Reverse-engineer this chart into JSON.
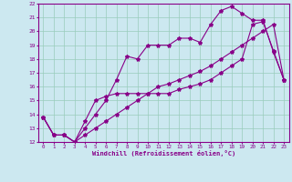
{
  "xlabel": "Windchill (Refroidissement éolien,°C)",
  "bg_color": "#cce8f0",
  "line_color": "#880088",
  "grid_color": "#99ccbb",
  "xlim": [
    -0.5,
    23.5
  ],
  "ylim": [
    12,
    22
  ],
  "xticks": [
    0,
    1,
    2,
    3,
    4,
    5,
    6,
    7,
    8,
    9,
    10,
    11,
    12,
    13,
    14,
    15,
    16,
    17,
    18,
    19,
    20,
    21,
    22,
    23
  ],
  "yticks": [
    12,
    13,
    14,
    15,
    16,
    17,
    18,
    19,
    20,
    21,
    22
  ],
  "line1_x": [
    0,
    1,
    2,
    3,
    4,
    5,
    6,
    7,
    8,
    9,
    10,
    11,
    12,
    13,
    14,
    15,
    16,
    17,
    18,
    19,
    20,
    21,
    22,
    23
  ],
  "line1_y": [
    13.8,
    12.5,
    12.5,
    12.0,
    12.5,
    13.0,
    13.5,
    14.0,
    14.5,
    15.0,
    15.5,
    16.0,
    16.2,
    16.5,
    16.8,
    17.1,
    17.5,
    18.0,
    18.5,
    19.0,
    19.5,
    20.0,
    20.5,
    16.5
  ],
  "line2_x": [
    0,
    1,
    2,
    3,
    4,
    5,
    6,
    7,
    8,
    9,
    10,
    11,
    12,
    13,
    14,
    15,
    16,
    17,
    18,
    19,
    20,
    21,
    22,
    23
  ],
  "line2_y": [
    13.8,
    12.5,
    12.5,
    12.0,
    13.0,
    14.0,
    15.0,
    16.5,
    18.2,
    18.0,
    19.0,
    19.0,
    19.0,
    19.5,
    19.5,
    19.2,
    20.5,
    21.5,
    21.8,
    21.3,
    20.8,
    20.8,
    18.5,
    16.5
  ],
  "line3_x": [
    0,
    1,
    2,
    3,
    4,
    5,
    6,
    7,
    8,
    9,
    10,
    11,
    12,
    13,
    14,
    15,
    16,
    17,
    18,
    19,
    20,
    21,
    22,
    23
  ],
  "line3_y": [
    13.8,
    12.5,
    12.5,
    12.0,
    13.5,
    15.0,
    15.3,
    15.5,
    15.5,
    15.5,
    15.5,
    15.5,
    15.5,
    15.8,
    16.0,
    16.2,
    16.5,
    17.0,
    17.5,
    18.0,
    20.5,
    20.7,
    18.6,
    16.5
  ]
}
